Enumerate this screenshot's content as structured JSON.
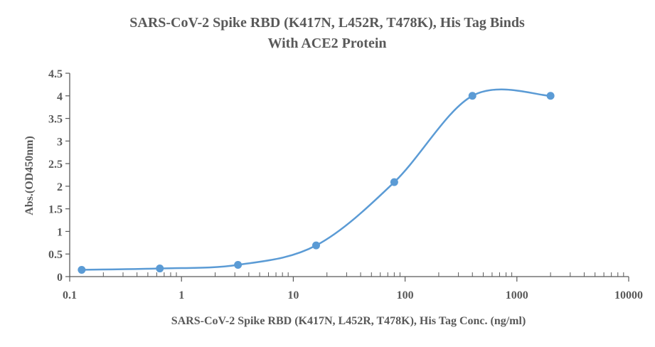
{
  "chart_data": {
    "type": "scatter",
    "title_line1": "SARS-CoV-2 Spike RBD (K417N, L452R, T478K), His Tag Binds",
    "title_line2": "With ACE2 Protein",
    "xlabel": "SARS-CoV-2 Spike RBD (K417N, L452R, T478K), His Tag Conc. (ng/ml)",
    "ylabel": "Abs.(OD450nm)",
    "xscale": "log",
    "xlim": [
      0.1,
      10000
    ],
    "ylim": [
      0,
      4.5
    ],
    "x_ticks": [
      "0.1",
      "1",
      "10",
      "100",
      "1000",
      "10000"
    ],
    "y_ticks": [
      "0",
      "0.5",
      "1",
      "1.5",
      "2",
      "2.5",
      "3",
      "3.5",
      "4",
      "4.5"
    ],
    "grid": false,
    "series": [
      {
        "x": [
          0.128,
          0.64,
          3.2,
          16,
          80,
          400,
          2000
        ],
        "y": [
          0.15,
          0.18,
          0.26,
          0.69,
          2.09,
          4.0,
          4.0
        ]
      }
    ],
    "color": "#5b9bd5",
    "axis_color": "#595959"
  }
}
